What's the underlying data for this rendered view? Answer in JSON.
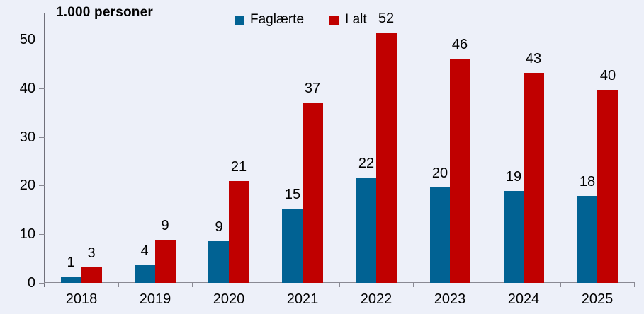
{
  "chart_data": {
    "type": "bar",
    "title": "1.000 personer",
    "categories": [
      "2018",
      "2019",
      "2020",
      "2021",
      "2022",
      "2023",
      "2024",
      "2025"
    ],
    "series": [
      {
        "name": "Faglærte",
        "color": "#016293",
        "values": [
          1.3,
          3.7,
          8.6,
          15.2,
          21.7,
          19.6,
          18.9,
          17.9
        ],
        "labels": [
          "1",
          "4",
          "9",
          "15",
          "22",
          "20",
          "19",
          "18"
        ]
      },
      {
        "name": "I alt",
        "color": "#c00000",
        "values": [
          3.2,
          8.8,
          20.9,
          37.1,
          51.5,
          46.1,
          43.1,
          39.7
        ],
        "labels": [
          "3",
          "9",
          "21",
          "37",
          "52",
          "46",
          "43",
          "40"
        ]
      }
    ],
    "xlabel": "",
    "ylabel": "1.000 personer",
    "ylim": [
      0,
      55.5
    ],
    "yticks": [
      0,
      10,
      20,
      30,
      40,
      50
    ],
    "grid": false,
    "legend_position": "top-center",
    "background_color": "#edf0f9",
    "data_labels_shown": true
  }
}
